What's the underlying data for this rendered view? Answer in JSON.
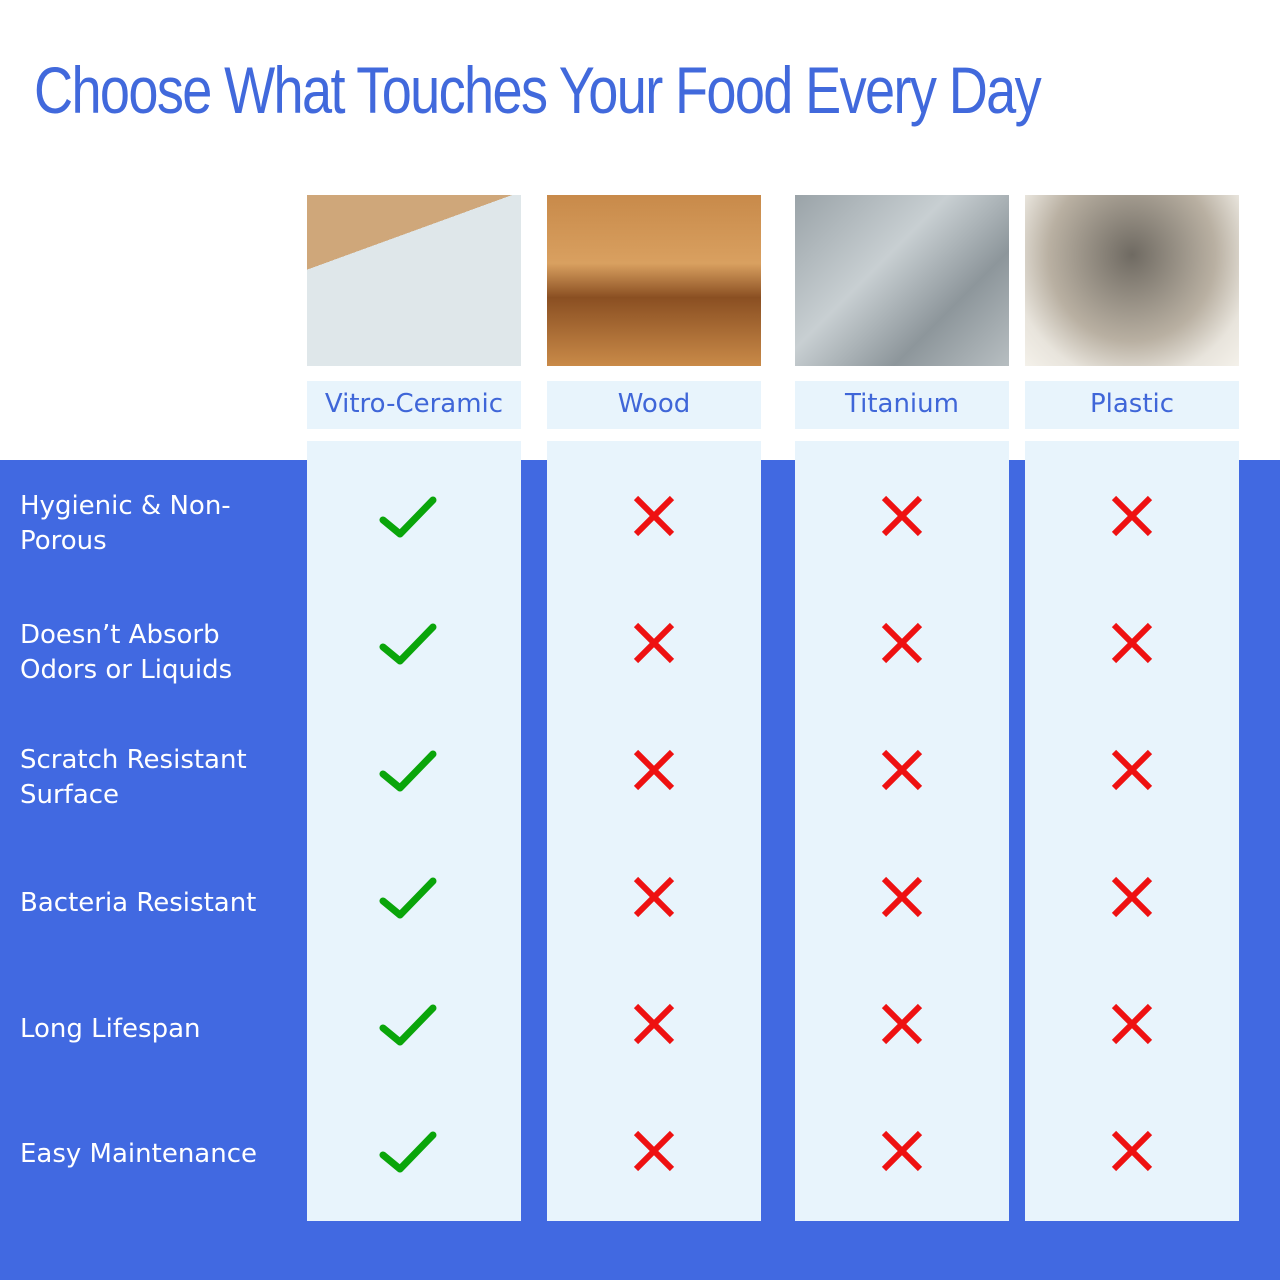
{
  "title": "Choose What Touches Your Food Every Day",
  "colors": {
    "brand_blue": "#4169e1",
    "panel": "#e8f4fc",
    "check": "#0aa50a",
    "cross": "#ee1111"
  },
  "materials": [
    {
      "label": "Vitro-Ceramic",
      "image": "cutting-board-photo"
    },
    {
      "label": "Wood",
      "image": "wood-board-photo"
    },
    {
      "label": "Titanium",
      "image": "titanium-board-photo"
    },
    {
      "label": "Plastic",
      "image": "plastic-board-photo"
    }
  ],
  "features": [
    {
      "label": "Hygienic & Non-Porous",
      "values": [
        true,
        false,
        false,
        false
      ]
    },
    {
      "label": "Doesn’t Absorb Odors or Liquids",
      "values": [
        true,
        false,
        false,
        false
      ]
    },
    {
      "label": "Scratch Resistant Surface",
      "values": [
        true,
        false,
        false,
        false
      ]
    },
    {
      "label": "Bacteria Resistant",
      "values": [
        true,
        false,
        false,
        false
      ]
    },
    {
      "label": "Long Lifespan",
      "values": [
        true,
        false,
        false,
        false
      ]
    },
    {
      "label": "Easy Maintenance",
      "values": [
        true,
        false,
        false,
        false
      ]
    }
  ]
}
